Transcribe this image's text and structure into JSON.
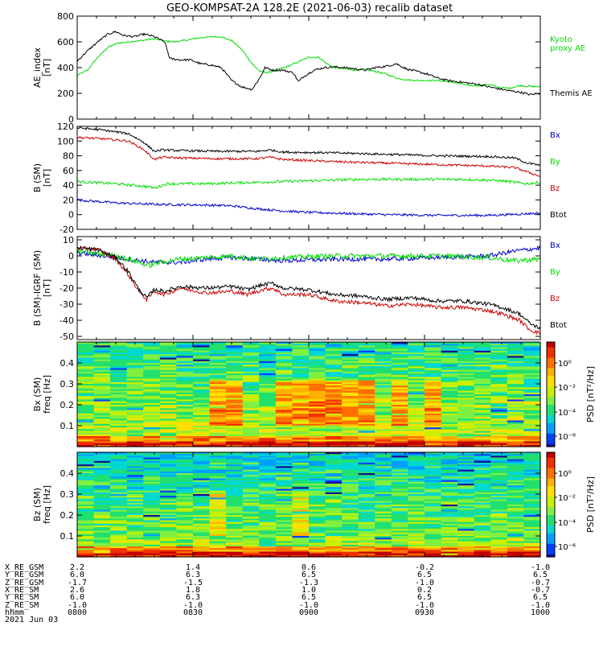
{
  "title": "GEO-KOMPSAT-2A 128.2E (2021-06-03) recalib dataset",
  "chart_data": [
    {
      "type": "line",
      "ylabel": "AE_index\n[nT]",
      "ylim": [
        0,
        800
      ],
      "yticks": [
        0,
        200,
        400,
        600,
        800
      ],
      "x_range": [
        "08:00",
        "10:00"
      ],
      "series": [
        {
          "name": "Kyoto\nproxy AE",
          "color": "#00dd00",
          "points": [
            [
              0,
              340
            ],
            [
              0.04,
              380
            ],
            [
              0.08,
              480
            ],
            [
              0.12,
              560
            ],
            [
              0.16,
              590
            ],
            [
              0.2,
              600
            ],
            [
              0.25,
              610
            ],
            [
              0.3,
              625
            ],
            [
              0.34,
              605
            ],
            [
              0.38,
              600
            ],
            [
              0.43,
              615
            ],
            [
              0.47,
              630
            ],
            [
              0.52,
              640
            ],
            [
              0.56,
              640
            ],
            [
              0.6,
              610
            ],
            [
              0.64,
              540
            ],
            [
              0.68,
              430
            ],
            [
              0.71,
              370
            ],
            [
              0.74,
              360
            ],
            [
              0.78,
              385
            ],
            [
              0.82,
              410
            ],
            [
              0.86,
              445
            ],
            [
              0.9,
              480
            ],
            [
              0.94,
              480
            ],
            [
              0.97,
              430
            ],
            [
              1.0,
              400
            ],
            [
              1.04,
              390
            ],
            [
              1.08,
              380
            ],
            [
              1.12,
              385
            ],
            [
              1.16,
              370
            ],
            [
              1.2,
              350
            ],
            [
              1.24,
              320
            ],
            [
              1.28,
              305
            ],
            [
              1.32,
              300
            ],
            [
              1.36,
              300
            ],
            [
              1.4,
              300
            ],
            [
              1.44,
              290
            ],
            [
              1.48,
              280
            ],
            [
              1.52,
              260
            ],
            [
              1.56,
              260
            ],
            [
              1.6,
              270
            ],
            [
              1.64,
              245
            ],
            [
              1.68,
              240
            ],
            [
              1.72,
              260
            ],
            [
              1.76,
              255
            ],
            [
              1.8,
              250
            ]
          ],
          "noise": 6
        },
        {
          "name": "Themis AE",
          "color": "#000000",
          "points": [
            [
              0,
              450
            ],
            [
              0.04,
              530
            ],
            [
              0.08,
              600
            ],
            [
              0.12,
              660
            ],
            [
              0.15,
              680
            ],
            [
              0.18,
              650
            ],
            [
              0.22,
              640
            ],
            [
              0.26,
              660
            ],
            [
              0.3,
              640
            ],
            [
              0.34,
              600
            ],
            [
              0.36,
              470
            ],
            [
              0.4,
              460
            ],
            [
              0.44,
              460
            ],
            [
              0.48,
              430
            ],
            [
              0.52,
              420
            ],
            [
              0.56,
              400
            ],
            [
              0.6,
              300
            ],
            [
              0.64,
              250
            ],
            [
              0.68,
              230
            ],
            [
              0.71,
              320
            ],
            [
              0.73,
              400
            ],
            [
              0.76,
              380
            ],
            [
              0.8,
              380
            ],
            [
              0.84,
              360
            ],
            [
              0.86,
              290
            ],
            [
              0.88,
              330
            ],
            [
              0.92,
              380
            ],
            [
              0.96,
              400
            ],
            [
              1.0,
              405
            ],
            [
              1.04,
              400
            ],
            [
              1.08,
              390
            ],
            [
              1.12,
              380
            ],
            [
              1.16,
              400
            ],
            [
              1.2,
              410
            ],
            [
              1.24,
              430
            ],
            [
              1.28,
              390
            ],
            [
              1.32,
              370
            ],
            [
              1.36,
              350
            ],
            [
              1.4,
              320
            ],
            [
              1.44,
              300
            ],
            [
              1.48,
              290
            ],
            [
              1.52,
              280
            ],
            [
              1.56,
              270
            ],
            [
              1.6,
              250
            ],
            [
              1.64,
              235
            ],
            [
              1.68,
              220
            ],
            [
              1.72,
              210
            ],
            [
              1.76,
              190
            ],
            [
              1.8,
              200
            ]
          ],
          "noise": 8
        }
      ]
    },
    {
      "type": "line",
      "ylabel": "B (SM)\n[nT]",
      "ylim": [
        -20,
        120
      ],
      "yticks": [
        -20,
        0,
        20,
        40,
        60,
        80,
        100,
        120
      ],
      "x_range": [
        "08:00",
        "10:00"
      ],
      "series": [
        {
          "name": "Bx",
          "color": "#0000cc",
          "points": [
            [
              0,
              20
            ],
            [
              0.15,
              16
            ],
            [
              0.3,
              14
            ],
            [
              0.5,
              13
            ],
            [
              0.6,
              12
            ],
            [
              0.7,
              8
            ],
            [
              0.8,
              5
            ],
            [
              0.9,
              3
            ],
            [
              1.0,
              2
            ],
            [
              1.2,
              0
            ],
            [
              1.4,
              -1
            ],
            [
              1.6,
              -1
            ],
            [
              1.8,
              2
            ]
          ],
          "noise": 1.6
        },
        {
          "name": "By",
          "color": "#00dd00",
          "points": [
            [
              0,
              45
            ],
            [
              0.15,
              42
            ],
            [
              0.28,
              38
            ],
            [
              0.3,
              36
            ],
            [
              0.35,
              42
            ],
            [
              0.5,
              42
            ],
            [
              0.7,
              44
            ],
            [
              0.9,
              46
            ],
            [
              1.1,
              48
            ],
            [
              1.3,
              48
            ],
            [
              1.5,
              48
            ],
            [
              1.65,
              46
            ],
            [
              1.75,
              42
            ],
            [
              1.8,
              44
            ]
          ],
          "noise": 1.8
        },
        {
          "name": "Bz",
          "color": "#cc0000",
          "points": [
            [
              0,
              105
            ],
            [
              0.1,
              103
            ],
            [
              0.2,
              100
            ],
            [
              0.26,
              88
            ],
            [
              0.3,
              75
            ],
            [
              0.33,
              78
            ],
            [
              0.4,
              77
            ],
            [
              0.55,
              76
            ],
            [
              0.7,
              76
            ],
            [
              0.75,
              78
            ],
            [
              0.8,
              75
            ],
            [
              1.0,
              72
            ],
            [
              1.2,
              70
            ],
            [
              1.4,
              68
            ],
            [
              1.6,
              66
            ],
            [
              1.7,
              64
            ],
            [
              1.75,
              58
            ],
            [
              1.8,
              52
            ]
          ],
          "noise": 1.5
        },
        {
          "name": "Btot",
          "color": "#000000",
          "points": [
            [
              0,
              118
            ],
            [
              0.1,
              115
            ],
            [
              0.2,
              110
            ],
            [
              0.26,
              98
            ],
            [
              0.3,
              86
            ],
            [
              0.33,
              88
            ],
            [
              0.4,
              87
            ],
            [
              0.55,
              86
            ],
            [
              0.7,
              86
            ],
            [
              0.75,
              88
            ],
            [
              0.8,
              85
            ],
            [
              1.0,
              84
            ],
            [
              1.2,
              82
            ],
            [
              1.4,
              80
            ],
            [
              1.6,
              79
            ],
            [
              1.7,
              77
            ],
            [
              1.75,
              70
            ],
            [
              1.8,
              67
            ]
          ],
          "noise": 1.5
        }
      ]
    },
    {
      "type": "line",
      "ylabel": "B (SM)-IGRF (SM)\n[nT]",
      "ylim": [
        -52,
        12
      ],
      "yticks": [
        -50,
        -40,
        -30,
        -20,
        -10,
        0,
        10
      ],
      "x_range": [
        "08:00",
        "10:00"
      ],
      "series": [
        {
          "name": "Bx",
          "color": "#0000cc",
          "points": [
            [
              0,
              2
            ],
            [
              0.15,
              -1
            ],
            [
              0.3,
              -4
            ],
            [
              0.4,
              -4
            ],
            [
              0.5,
              -2
            ],
            [
              0.6,
              -1
            ],
            [
              0.7,
              -2
            ],
            [
              0.8,
              -3
            ],
            [
              1.0,
              -2
            ],
            [
              1.2,
              -2
            ],
            [
              1.4,
              -1
            ],
            [
              1.6,
              0
            ],
            [
              1.7,
              3
            ],
            [
              1.8,
              5
            ]
          ],
          "noise": 1.4
        },
        {
          "name": "By",
          "color": "#00dd00",
          "points": [
            [
              0,
              3
            ],
            [
              0.15,
              0
            ],
            [
              0.28,
              -6
            ],
            [
              0.32,
              -4
            ],
            [
              0.4,
              -2
            ],
            [
              0.6,
              0
            ],
            [
              0.7,
              -2
            ],
            [
              0.8,
              -1
            ],
            [
              1.0,
              0
            ],
            [
              1.2,
              0
            ],
            [
              1.4,
              0
            ],
            [
              1.6,
              -1
            ],
            [
              1.7,
              -3
            ],
            [
              1.8,
              -2
            ]
          ],
          "noise": 1.6
        },
        {
          "name": "Bz",
          "color": "#cc0000",
          "points": [
            [
              0,
              5
            ],
            [
              0.08,
              4
            ],
            [
              0.15,
              -2
            ],
            [
              0.2,
              -12
            ],
            [
              0.24,
              -22
            ],
            [
              0.27,
              -27
            ],
            [
              0.3,
              -22
            ],
            [
              0.34,
              -24
            ],
            [
              0.4,
              -20
            ],
            [
              0.5,
              -23
            ],
            [
              0.6,
              -22
            ],
            [
              0.66,
              -24
            ],
            [
              0.72,
              -21
            ],
            [
              0.76,
              -20
            ],
            [
              0.8,
              -24
            ],
            [
              0.9,
              -24
            ],
            [
              1.0,
              -28
            ],
            [
              1.1,
              -29
            ],
            [
              1.2,
              -31
            ],
            [
              1.3,
              -30
            ],
            [
              1.4,
              -32
            ],
            [
              1.5,
              -32
            ],
            [
              1.6,
              -34
            ],
            [
              1.65,
              -36
            ],
            [
              1.72,
              -40
            ],
            [
              1.76,
              -46
            ],
            [
              1.8,
              -48
            ]
          ],
          "noise": 1.2
        },
        {
          "name": "Btot",
          "color": "#000000",
          "points": [
            [
              0,
              5
            ],
            [
              0.08,
              4
            ],
            [
              0.15,
              -1
            ],
            [
              0.2,
              -10
            ],
            [
              0.24,
              -21
            ],
            [
              0.27,
              -26
            ],
            [
              0.3,
              -21
            ],
            [
              0.34,
              -22
            ],
            [
              0.4,
              -19
            ],
            [
              0.5,
              -20
            ],
            [
              0.6,
              -19
            ],
            [
              0.66,
              -21
            ],
            [
              0.72,
              -18
            ],
            [
              0.76,
              -17
            ],
            [
              0.8,
              -20
            ],
            [
              0.9,
              -21
            ],
            [
              1.0,
              -24
            ],
            [
              1.1,
              -25
            ],
            [
              1.2,
              -27
            ],
            [
              1.3,
              -26
            ],
            [
              1.4,
              -28
            ],
            [
              1.5,
              -28
            ],
            [
              1.6,
              -30
            ],
            [
              1.65,
              -32
            ],
            [
              1.72,
              -36
            ],
            [
              1.76,
              -42
            ],
            [
              1.8,
              -45
            ]
          ],
          "noise": 1.2
        }
      ]
    },
    {
      "type": "heatmap",
      "ylabel": "Bx (SM)\nfreq [Hz]",
      "ylim": [
        0,
        0.5
      ],
      "yticks": [
        0.1,
        0.2,
        0.3,
        0.4
      ],
      "colorbar_label": "PSD [nT²/Hz]",
      "colorbar_ticks": [
        "10⁰",
        "10⁻²",
        "10⁻⁴",
        "10⁻⁶"
      ],
      "hot_columns": [
        8,
        9,
        12,
        13,
        14,
        15,
        16,
        17,
        19,
        21
      ],
      "cool_level": 0
    },
    {
      "type": "heatmap",
      "ylabel": "Bz (SM)\nfreq [Hz]",
      "ylim": [
        0,
        0.5
      ],
      "yticks": [
        0.1,
        0.2,
        0.3,
        0.4
      ],
      "colorbar_label": "PSD [nT²/Hz]",
      "colorbar_ticks": [
        "10⁰",
        "10⁻²",
        "10⁻⁴",
        "10⁻⁶"
      ],
      "hot_columns": [
        8,
        13
      ],
      "cool_level": 1
    }
  ],
  "ephemeris": {
    "labels": [
      "X_RE_GSM",
      "Y_RE_GSM",
      "Z_RE_GSM",
      "X_RE_SM",
      "Y_RE_SM",
      "Z_RE_SM",
      "hhmm",
      "2021 Jun 03"
    ],
    "columns": [
      [
        "2.2",
        "6.0",
        "-1.7",
        "2.6",
        "6.0",
        "-1.0",
        "0800"
      ],
      [
        "1.4",
        "6.3",
        "-1.5",
        "1.8",
        "6.3",
        "-1.0",
        "0830"
      ],
      [
        "0.6",
        "6.5",
        "-1.3",
        "1.0",
        "6.5",
        "-1.0",
        "0900"
      ],
      [
        "-0.2",
        "6.5",
        "-1.0",
        "0.2",
        "6.5",
        "-1.0",
        "0930"
      ],
      [
        "-1.0",
        "6.5",
        "-0.7",
        "-0.7",
        "6.5",
        "-1.0",
        "1000"
      ]
    ]
  }
}
